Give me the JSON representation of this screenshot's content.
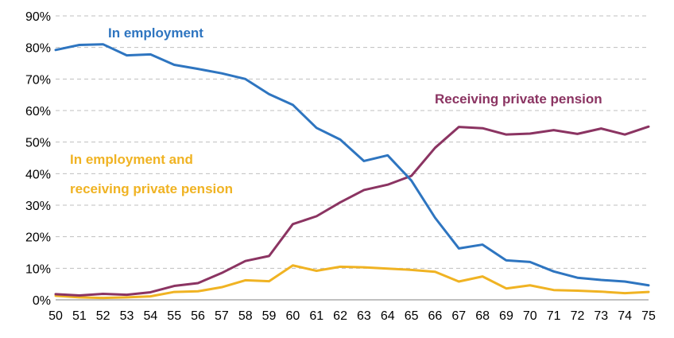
{
  "chart_data": {
    "type": "line",
    "title": "",
    "xlabel": "",
    "ylabel": "",
    "x": [
      50,
      51,
      52,
      53,
      54,
      55,
      56,
      57,
      58,
      59,
      60,
      61,
      62,
      63,
      64,
      65,
      66,
      67,
      68,
      69,
      70,
      71,
      72,
      73,
      74,
      75
    ],
    "ylim": [
      0,
      90
    ],
    "y_ticks": [
      0,
      10,
      20,
      30,
      40,
      50,
      60,
      70,
      80,
      90
    ],
    "y_tick_labels": [
      "0%",
      "10%",
      "20%",
      "30%",
      "40%",
      "50%",
      "60%",
      "70%",
      "80%",
      "90%"
    ],
    "x_tick_labels": [
      "50",
      "51",
      "52",
      "53",
      "54",
      "55",
      "56",
      "57",
      "58",
      "59",
      "60",
      "61",
      "62",
      "63",
      "64",
      "65",
      "66",
      "67",
      "68",
      "69",
      "70",
      "71",
      "72",
      "73",
      "74",
      "75"
    ],
    "grid": true,
    "legend": "inline labels",
    "series": [
      {
        "name": "In employment",
        "color": "#2e75c0",
        "values": [
          79.2,
          80.8,
          81,
          77.5,
          77.8,
          74.5,
          73.2,
          71.8,
          70,
          65.2,
          61.8,
          54.5,
          50.8,
          44,
          45.8,
          37.8,
          26,
          16.3,
          17.5,
          12.5,
          12,
          9,
          7,
          6.3,
          5.8,
          4.6
        ]
      },
      {
        "name": "Receiving private pension",
        "color": "#8b3462",
        "values": [
          1.8,
          1.4,
          1.9,
          1.6,
          2.4,
          4.4,
          5.3,
          8.5,
          12.3,
          13.9,
          24,
          26.5,
          30.9,
          34.8,
          36.5,
          39.3,
          48.2,
          54.8,
          54.4,
          52.4,
          52.7,
          53.8,
          52.6,
          54.3,
          52.4,
          54.9
        ]
      },
      {
        "name": "In employment and receiving private pension",
        "label_lines": [
          "In employment and",
          "receiving private pension"
        ],
        "color": "#f0b323",
        "values": [
          1.3,
          0.8,
          0.6,
          0.8,
          1.1,
          2.5,
          2.7,
          4,
          6.2,
          5.9,
          10.9,
          9.2,
          10.5,
          10.3,
          9.9,
          9.5,
          8.9,
          5.8,
          7.4,
          3.6,
          4.6,
          3.1,
          2.9,
          2.6,
          2.1,
          2.5
        ]
      }
    ]
  }
}
